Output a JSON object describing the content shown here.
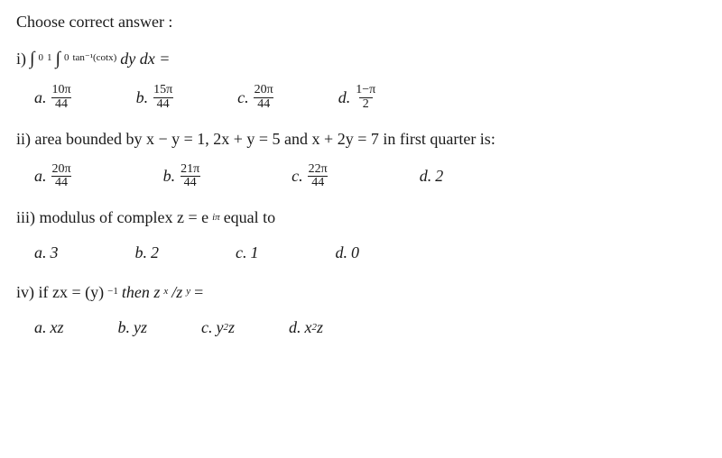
{
  "title": "Choose correct answer :",
  "q1": {
    "prefix": "i) ",
    "integral_outer_a": "0",
    "integral_outer_b": "1",
    "integral_inner_a": "0",
    "integral_inner_b": "tan⁻¹(cotx)",
    "tail": " dy dx =",
    "a": {
      "lbl": "a.",
      "num": "10π",
      "den": "44"
    },
    "b": {
      "lbl": "b.",
      "num": "15π",
      "den": "44"
    },
    "c": {
      "lbl": "c.",
      "num": "20π",
      "den": "44"
    },
    "d": {
      "lbl": "d.",
      "num": "1−π",
      "den": "2"
    }
  },
  "q2": {
    "text": "ii) area bounded by x − y = 1, 2x + y = 5 and x + 2y = 7 in first quarter is:",
    "a": {
      "lbl": "a.",
      "num": "20π",
      "den": "44"
    },
    "b": {
      "lbl": "b.",
      "num": "21π",
      "den": "44"
    },
    "c": {
      "lbl": "c.",
      "num": "22π",
      "den": "44"
    },
    "d": {
      "lbl": "d.",
      "val": "2"
    }
  },
  "q3": {
    "pre": "iii) modulus of complex z = e",
    "sup": "iπ",
    "post": " equal to",
    "a": {
      "lbl": "a.",
      "val": "3"
    },
    "b": {
      "lbl": "b.",
      "val": "2"
    },
    "c": {
      "lbl": "c.",
      "val": "1"
    },
    "d": {
      "lbl": "d.",
      "val": "0"
    }
  },
  "q4": {
    "pre": "iv) if zx = (y)",
    "sup": "−1",
    "mid": " then  z",
    "subx": "x",
    "slash": "/z",
    "suby": "y",
    "post": " =",
    "a": {
      "lbl": "a.",
      "val": "xz"
    },
    "b": {
      "lbl": "b.",
      "val": "yz"
    },
    "c": {
      "lbl": "c.",
      "pre": "y",
      "sup": "2",
      "post": "z"
    },
    "d": {
      "lbl": "d.",
      "pre": "x",
      "sup": "2",
      "post": "z"
    }
  }
}
